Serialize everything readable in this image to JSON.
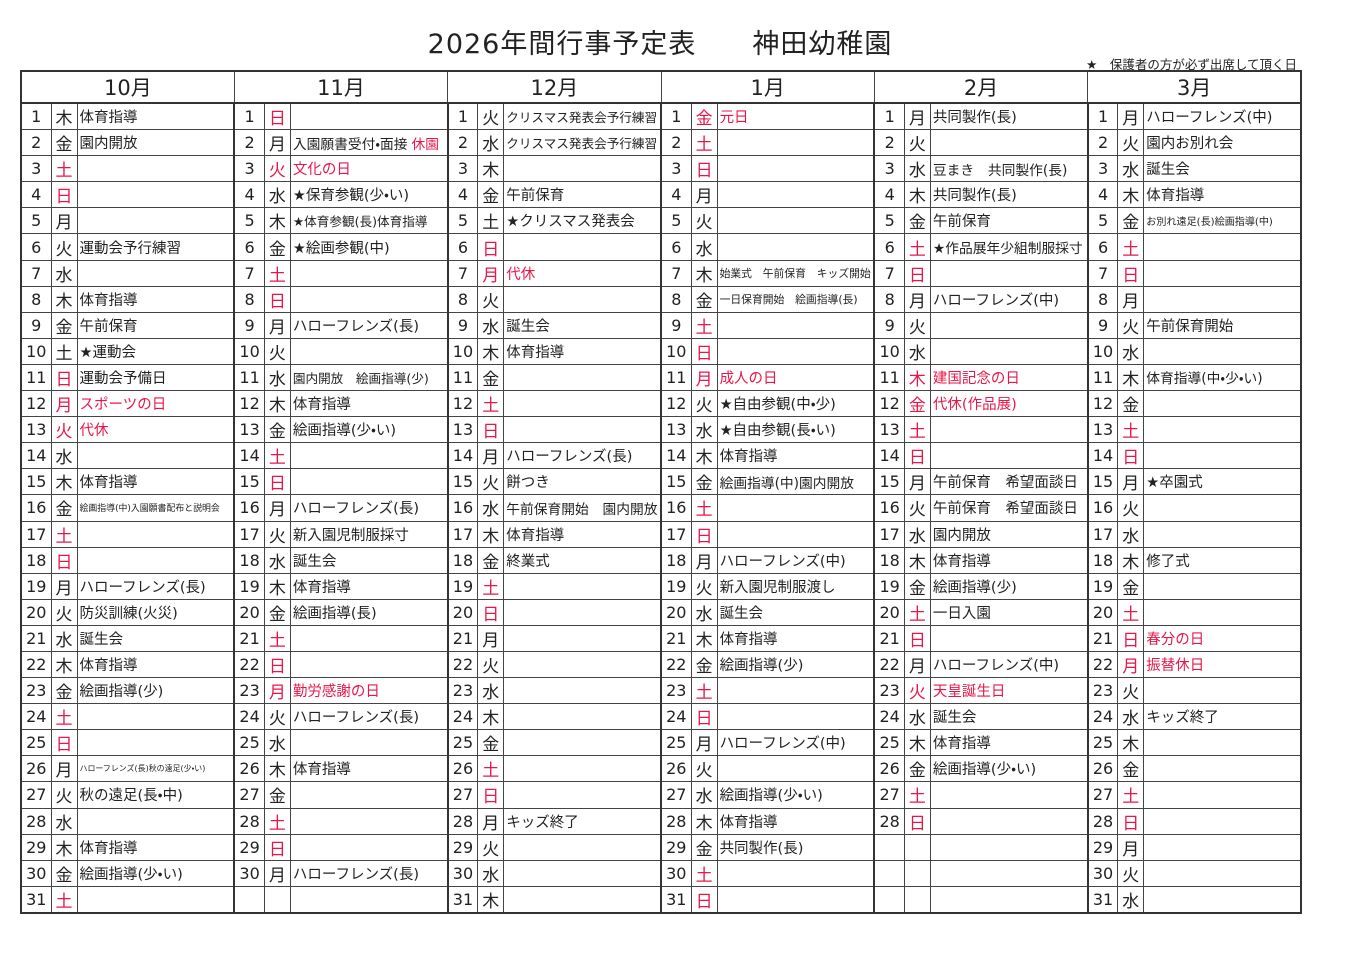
{
  "title": "2026年間行事予定表　　神田幼稚園",
  "note": "★　保護者の方が必ず出席して頂く日",
  "holiday_color": "#e8174a",
  "months": [
    {
      "name": "10月",
      "days": [
        {
          "day": 1,
          "weekday": "木",
          "event": "体育指導"
        },
        {
          "day": 2,
          "weekday": "金",
          "event": "園内開放"
        },
        {
          "day": 3,
          "weekday": "土",
          "red_weekday": true
        },
        {
          "day": 4,
          "weekday": "日",
          "red_weekday": true
        },
        {
          "day": 5,
          "weekday": "月"
        },
        {
          "day": 6,
          "weekday": "火",
          "event": "運動会予行練習"
        },
        {
          "day": 7,
          "weekday": "水"
        },
        {
          "day": 8,
          "weekday": "木",
          "event": "体育指導"
        },
        {
          "day": 9,
          "weekday": "金",
          "event": "午前保育"
        },
        {
          "day": 10,
          "weekday": "土",
          "event": "★運動会"
        },
        {
          "day": 11,
          "weekday": "日",
          "event": "運動会予備日",
          "red_weekday": true
        },
        {
          "day": 12,
          "weekday": "月",
          "event": "スポーツの日",
          "red_weekday": true,
          "red_event": true
        },
        {
          "day": 13,
          "weekday": "火",
          "event": "代休",
          "red_weekday": true,
          "red_event": true
        },
        {
          "day": 14,
          "weekday": "水"
        },
        {
          "day": 15,
          "weekday": "木",
          "event": "体育指導"
        },
        {
          "day": 16,
          "weekday": "金",
          "event": "絵画指導(中)入園願書配布と説明会"
        },
        {
          "day": 17,
          "weekday": "土",
          "red_weekday": true
        },
        {
          "day": 18,
          "weekday": "日",
          "red_weekday": true
        },
        {
          "day": 19,
          "weekday": "月",
          "event": "ハローフレンズ(長)"
        },
        {
          "day": 20,
          "weekday": "火",
          "event": "防災訓練(火災)"
        },
        {
          "day": 21,
          "weekday": "水",
          "event": "誕生会"
        },
        {
          "day": 22,
          "weekday": "木",
          "event": "体育指導"
        },
        {
          "day": 23,
          "weekday": "金",
          "event": "絵画指導(少)"
        },
        {
          "day": 24,
          "weekday": "土",
          "red_weekday": true
        },
        {
          "day": 25,
          "weekday": "日",
          "red_weekday": true
        },
        {
          "day": 26,
          "weekday": "月",
          "event": "ハローフレンズ(長)秋の遠足(少・い)"
        },
        {
          "day": 27,
          "weekday": "火",
          "event": "秋の遠足(長・中)"
        },
        {
          "day": 28,
          "weekday": "水"
        },
        {
          "day": 29,
          "weekday": "木",
          "event": "体育指導"
        },
        {
          "day": 30,
          "weekday": "金",
          "event": "絵画指導(少・い)"
        },
        {
          "day": 31,
          "weekday": "土",
          "red_weekday": true
        }
      ]
    },
    {
      "name": "11月",
      "days": [
        {
          "day": 1,
          "weekday": "日",
          "red_weekday": true
        },
        {
          "day": 2,
          "weekday": "月",
          "event": "入園願書受付・面接",
          "event_note": "休園"
        },
        {
          "day": 3,
          "weekday": "火",
          "event": "文化の日",
          "red_weekday": true,
          "red_event": true
        },
        {
          "day": 4,
          "weekday": "水",
          "event": "★保育参観(少・い)"
        },
        {
          "day": 5,
          "weekday": "木",
          "event": "★体育参観(長)体育指導"
        },
        {
          "day": 6,
          "weekday": "金",
          "event": "★絵画参観(中)"
        },
        {
          "day": 7,
          "weekday": "土",
          "red_weekday": true
        },
        {
          "day": 8,
          "weekday": "日",
          "red_weekday": true
        },
        {
          "day": 9,
          "weekday": "月",
          "event": "ハローフレンズ(長)"
        },
        {
          "day": 10,
          "weekday": "火"
        },
        {
          "day": 11,
          "weekday": "水",
          "event": "園内開放　絵画指導(少)"
        },
        {
          "day": 12,
          "weekday": "木",
          "event": "体育指導"
        },
        {
          "day": 13,
          "weekday": "金",
          "event": "絵画指導(少・い)"
        },
        {
          "day": 14,
          "weekday": "土",
          "red_weekday": true
        },
        {
          "day": 15,
          "weekday": "日",
          "red_weekday": true
        },
        {
          "day": 16,
          "weekday": "月",
          "event": "ハローフレンズ(長)"
        },
        {
          "day": 17,
          "weekday": "火",
          "event": "新入園児制服採寸"
        },
        {
          "day": 18,
          "weekday": "水",
          "event": "誕生会"
        },
        {
          "day": 19,
          "weekday": "木",
          "event": "体育指導"
        },
        {
          "day": 20,
          "weekday": "金",
          "event": "絵画指導(長)"
        },
        {
          "day": 21,
          "weekday": "土",
          "red_weekday": true
        },
        {
          "day": 22,
          "weekday": "日",
          "red_weekday": true
        },
        {
          "day": 23,
          "weekday": "月",
          "event": "勤労感謝の日",
          "red_weekday": true,
          "red_event": true
        },
        {
          "day": 24,
          "weekday": "火",
          "event": "ハローフレンズ(長)"
        },
        {
          "day": 25,
          "weekday": "水"
        },
        {
          "day": 26,
          "weekday": "木",
          "event": "体育指導"
        },
        {
          "day": 27,
          "weekday": "金"
        },
        {
          "day": 28,
          "weekday": "土",
          "red_weekday": true
        },
        {
          "day": 29,
          "weekday": "日",
          "red_weekday": true
        },
        {
          "day": 30,
          "weekday": "月",
          "event": "ハローフレンズ(長)"
        }
      ]
    },
    {
      "name": "12月",
      "days": [
        {
          "day": 1,
          "weekday": "火",
          "event": "クリスマス発表会予行練習"
        },
        {
          "day": 2,
          "weekday": "水",
          "event": "クリスマス発表会予行練習"
        },
        {
          "day": 3,
          "weekday": "木"
        },
        {
          "day": 4,
          "weekday": "金",
          "event": "午前保育"
        },
        {
          "day": 5,
          "weekday": "土",
          "event": "★クリスマス発表会"
        },
        {
          "day": 6,
          "weekday": "日",
          "red_weekday": true
        },
        {
          "day": 7,
          "weekday": "月",
          "event": "代休",
          "red_weekday": true,
          "red_event": true
        },
        {
          "day": 8,
          "weekday": "火"
        },
        {
          "day": 9,
          "weekday": "水",
          "event": "誕生会"
        },
        {
          "day": 10,
          "weekday": "木",
          "event": "体育指導"
        },
        {
          "day": 11,
          "weekday": "金"
        },
        {
          "day": 12,
          "weekday": "土",
          "red_weekday": true
        },
        {
          "day": 13,
          "weekday": "日",
          "red_weekday": true
        },
        {
          "day": 14,
          "weekday": "月",
          "event": "ハローフレンズ(長)"
        },
        {
          "day": 15,
          "weekday": "火",
          "event": "餅つき"
        },
        {
          "day": 16,
          "weekday": "水",
          "event": "午前保育開始　園内開放"
        },
        {
          "day": 17,
          "weekday": "木",
          "event": "体育指導"
        },
        {
          "day": 18,
          "weekday": "金",
          "event": "終業式"
        },
        {
          "day": 19,
          "weekday": "土",
          "red_weekday": true
        },
        {
          "day": 20,
          "weekday": "日",
          "red_weekday": true
        },
        {
          "day": 21,
          "weekday": "月"
        },
        {
          "day": 22,
          "weekday": "火"
        },
        {
          "day": 23,
          "weekday": "水"
        },
        {
          "day": 24,
          "weekday": "木"
        },
        {
          "day": 25,
          "weekday": "金"
        },
        {
          "day": 26,
          "weekday": "土",
          "red_weekday": true
        },
        {
          "day": 27,
          "weekday": "日",
          "red_weekday": true
        },
        {
          "day": 28,
          "weekday": "月",
          "event": "キッズ終了"
        },
        {
          "day": 29,
          "weekday": "火"
        },
        {
          "day": 30,
          "weekday": "水"
        },
        {
          "day": 31,
          "weekday": "木"
        }
      ]
    },
    {
      "name": "1月",
      "days": [
        {
          "day": 1,
          "weekday": "金",
          "event": "元日",
          "red_weekday": true,
          "red_event": true
        },
        {
          "day": 2,
          "weekday": "土",
          "red_weekday": true
        },
        {
          "day": 3,
          "weekday": "日",
          "red_weekday": true
        },
        {
          "day": 4,
          "weekday": "月"
        },
        {
          "day": 5,
          "weekday": "火"
        },
        {
          "day": 6,
          "weekday": "水"
        },
        {
          "day": 7,
          "weekday": "木",
          "event": "始業式　午前保育　キッズ開始"
        },
        {
          "day": 8,
          "weekday": "金",
          "event": "一日保育開始　絵画指導(長)"
        },
        {
          "day": 9,
          "weekday": "土",
          "red_weekday": true
        },
        {
          "day": 10,
          "weekday": "日",
          "red_weekday": true
        },
        {
          "day": 11,
          "weekday": "月",
          "event": "成人の日",
          "red_weekday": true,
          "red_event": true
        },
        {
          "day": 12,
          "weekday": "火",
          "event": "★自由参観(中・少)"
        },
        {
          "day": 13,
          "weekday": "水",
          "event": "★自由参観(長・い)"
        },
        {
          "day": 14,
          "weekday": "木",
          "event": "体育指導"
        },
        {
          "day": 15,
          "weekday": "金",
          "event": "絵画指導(中)園内開放"
        },
        {
          "day": 16,
          "weekday": "土",
          "red_weekday": true
        },
        {
          "day": 17,
          "weekday": "日",
          "red_weekday": true
        },
        {
          "day": 18,
          "weekday": "月",
          "event": "ハローフレンズ(中)"
        },
        {
          "day": 19,
          "weekday": "火",
          "event": "新入園児制服渡し"
        },
        {
          "day": 20,
          "weekday": "水",
          "event": "誕生会"
        },
        {
          "day": 21,
          "weekday": "木",
          "event": "体育指導"
        },
        {
          "day": 22,
          "weekday": "金",
          "event": "絵画指導(少)"
        },
        {
          "day": 23,
          "weekday": "土",
          "red_weekday": true
        },
        {
          "day": 24,
          "weekday": "日",
          "red_weekday": true
        },
        {
          "day": 25,
          "weekday": "月",
          "event": "ハローフレンズ(中)"
        },
        {
          "day": 26,
          "weekday": "火"
        },
        {
          "day": 27,
          "weekday": "水",
          "event": "絵画指導(少・い)"
        },
        {
          "day": 28,
          "weekday": "木",
          "event": "体育指導"
        },
        {
          "day": 29,
          "weekday": "金",
          "event": "共同製作(長)"
        },
        {
          "day": 30,
          "weekday": "土",
          "red_weekday": true
        },
        {
          "day": 31,
          "weekday": "日",
          "red_weekday": true
        }
      ]
    },
    {
      "name": "2月",
      "days": [
        {
          "day": 1,
          "weekday": "月",
          "event": "共同製作(長)"
        },
        {
          "day": 2,
          "weekday": "火"
        },
        {
          "day": 3,
          "weekday": "水",
          "event": "豆まき　共同製作(長)"
        },
        {
          "day": 4,
          "weekday": "木",
          "event": "共同製作(長)"
        },
        {
          "day": 5,
          "weekday": "金",
          "event": "午前保育"
        },
        {
          "day": 6,
          "weekday": "土",
          "event": "★作品展年少組制服採寸",
          "red_weekday": true
        },
        {
          "day": 7,
          "weekday": "日",
          "red_weekday": true
        },
        {
          "day": 8,
          "weekday": "月",
          "event": "ハローフレンズ(中)"
        },
        {
          "day": 9,
          "weekday": "火"
        },
        {
          "day": 10,
          "weekday": "水"
        },
        {
          "day": 11,
          "weekday": "木",
          "event": "建国記念の日",
          "red_weekday": true,
          "red_event": true
        },
        {
          "day": 12,
          "weekday": "金",
          "event": "代休(作品展)",
          "red_weekday": true,
          "red_event": true
        },
        {
          "day": 13,
          "weekday": "土",
          "red_weekday": true
        },
        {
          "day": 14,
          "weekday": "日",
          "red_weekday": true
        },
        {
          "day": 15,
          "weekday": "月",
          "event": "午前保育　希望面談日"
        },
        {
          "day": 16,
          "weekday": "火",
          "event": "午前保育　希望面談日"
        },
        {
          "day": 17,
          "weekday": "水",
          "event": "園内開放"
        },
        {
          "day": 18,
          "weekday": "木",
          "event": "体育指導"
        },
        {
          "day": 19,
          "weekday": "金",
          "event": "絵画指導(少)"
        },
        {
          "day": 20,
          "weekday": "土",
          "event": "一日入園",
          "red_weekday": true
        },
        {
          "day": 21,
          "weekday": "日",
          "red_weekday": true
        },
        {
          "day": 22,
          "weekday": "月",
          "event": "ハローフレンズ(中)"
        },
        {
          "day": 23,
          "weekday": "火",
          "event": "天皇誕生日",
          "red_weekday": true,
          "red_event": true
        },
        {
          "day": 24,
          "weekday": "水",
          "event": "誕生会"
        },
        {
          "day": 25,
          "weekday": "木",
          "event": "体育指導"
        },
        {
          "day": 26,
          "weekday": "金",
          "event": "絵画指導(少・い)"
        },
        {
          "day": 27,
          "weekday": "土",
          "red_weekday": true
        },
        {
          "day": 28,
          "weekday": "日",
          "red_weekday": true
        }
      ]
    },
    {
      "name": "3月",
      "days": [
        {
          "day": 1,
          "weekday": "月",
          "event": "ハローフレンズ(中)"
        },
        {
          "day": 2,
          "weekday": "火",
          "event": "園内お別れ会"
        },
        {
          "day": 3,
          "weekday": "水",
          "event": "誕生会"
        },
        {
          "day": 4,
          "weekday": "木",
          "event": "体育指導"
        },
        {
          "day": 5,
          "weekday": "金",
          "event": "お別れ遠足(長)絵画指導(中)"
        },
        {
          "day": 6,
          "weekday": "土",
          "red_weekday": true
        },
        {
          "day": 7,
          "weekday": "日",
          "red_weekday": true
        },
        {
          "day": 8,
          "weekday": "月"
        },
        {
          "day": 9,
          "weekday": "火",
          "event": "午前保育開始"
        },
        {
          "day": 10,
          "weekday": "水"
        },
        {
          "day": 11,
          "weekday": "木",
          "event": "体育指導(中・少・い)"
        },
        {
          "day": 12,
          "weekday": "金"
        },
        {
          "day": 13,
          "weekday": "土",
          "red_weekday": true
        },
        {
          "day": 14,
          "weekday": "日",
          "red_weekday": true
        },
        {
          "day": 15,
          "weekday": "月",
          "event": "★卒園式"
        },
        {
          "day": 16,
          "weekday": "火"
        },
        {
          "day": 17,
          "weekday": "水"
        },
        {
          "day": 18,
          "weekday": "木",
          "event": "修了式"
        },
        {
          "day": 19,
          "weekday": "金"
        },
        {
          "day": 20,
          "weekday": "土",
          "red_weekday": true
        },
        {
          "day": 21,
          "weekday": "日",
          "event": "春分の日",
          "red_weekday": true,
          "red_event": true
        },
        {
          "day": 22,
          "weekday": "月",
          "event": "振替休日",
          "red_weekday": true,
          "red_event": true
        },
        {
          "day": 23,
          "weekday": "火"
        },
        {
          "day": 24,
          "weekday": "水",
          "event": "キッズ終了"
        },
        {
          "day": 25,
          "weekday": "木"
        },
        {
          "day": 26,
          "weekday": "金"
        },
        {
          "day": 27,
          "weekday": "土",
          "red_weekday": true
        },
        {
          "day": 28,
          "weekday": "日",
          "red_weekday": true
        },
        {
          "day": 29,
          "weekday": "月"
        },
        {
          "day": 30,
          "weekday": "火"
        },
        {
          "day": 31,
          "weekday": "水"
        }
      ]
    }
  ]
}
